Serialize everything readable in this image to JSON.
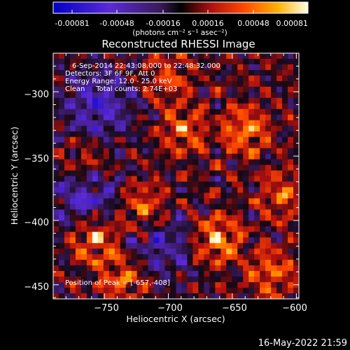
{
  "colorbar": {
    "tick_labels": [
      "-0.00081",
      "-0.00048",
      "-0.00016",
      "0.00016",
      "0.00048",
      "0.00081"
    ],
    "unit_label": "(photons cm⁻² s⁻¹ asec⁻²)"
  },
  "chart_data": {
    "type": "heatmap",
    "title": "Reconstructed RHESSI Image",
    "xlabel": "Heliocentric X (arcsec)",
    "ylabel": "Heliocentric Y (arcsec)",
    "xlim": [
      -790,
      -598
    ],
    "ylim": [
      -461,
      -270
    ],
    "xticks": [
      -750,
      -700,
      -650,
      -600
    ],
    "xtick_labels": [
      "−750",
      "−700",
      "−650",
      "−600"
    ],
    "yticks": [
      -300,
      -350,
      -400,
      -450
    ],
    "ytick_labels": [
      "−300",
      "−350",
      "−400",
      "−450"
    ],
    "colorscale_range": [
      -0.00081,
      0.00081
    ],
    "annotations": [
      "6-Sep-2014 22:43:08.000 to 22:48:32.000",
      "Detectors: 3F 6F 9F, Att 0",
      "Energy Range: 12.0 - 25.0 keV",
      "Clean     Total counts: 2.74E+03"
    ],
    "peak_label": "Position of Peak = [-657,-408]",
    "peak": [
      -657,
      -408
    ],
    "hot_spots": [
      {
        "x": -757,
        "y": -414,
        "amp": 0.95
      },
      {
        "x": -662,
        "y": -415,
        "amp": 1.0
      },
      {
        "x": -720,
        "y": -390,
        "amp": 0.8
      },
      {
        "x": -640,
        "y": -330,
        "amp": 0.85
      },
      {
        "x": -688,
        "y": -330,
        "amp": 0.7
      },
      {
        "x": -765,
        "y": -355,
        "amp": 0.6
      },
      {
        "x": -735,
        "y": -445,
        "amp": 0.75
      },
      {
        "x": -620,
        "y": -440,
        "amp": 0.7
      },
      {
        "x": -700,
        "y": -290,
        "amp": 0.55
      },
      {
        "x": -610,
        "y": -380,
        "amp": 0.65
      }
    ],
    "cold_spots": [
      {
        "x": -755,
        "y": -310,
        "amp": 0.8
      },
      {
        "x": -765,
        "y": -380,
        "amp": 0.75
      },
      {
        "x": -705,
        "y": -420,
        "amp": 0.6
      }
    ]
  },
  "timestamp": "16-May-2022 21:59"
}
